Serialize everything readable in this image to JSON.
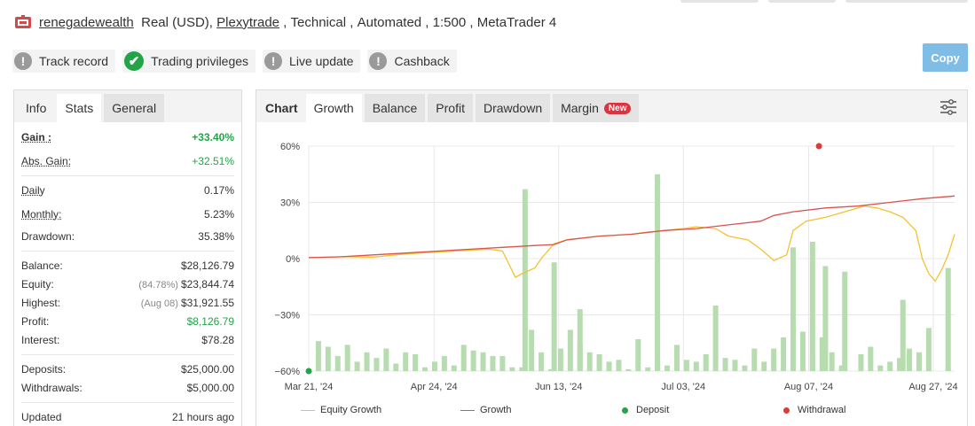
{
  "header": {
    "account": "renegadewealth",
    "type": "Real (USD)",
    "broker": "Plexytrade",
    "style": "Technical",
    "mode": "Automated",
    "leverage": "1:500",
    "platform": "MetaTrader 4",
    "flag_icon": "broker-flag-icon"
  },
  "badges": [
    {
      "label": "Track record",
      "icon": "exclamation-icon"
    },
    {
      "label": "Trading privileges",
      "icon": "check-icon"
    },
    {
      "label": "Live update",
      "icon": "exclamation-icon"
    },
    {
      "label": "Cashback",
      "icon": "exclamation-icon"
    }
  ],
  "copy_button": "Copy",
  "left_tabs": [
    "Info",
    "Stats",
    "General"
  ],
  "stats": {
    "gain_label": "Gain :",
    "gain": "+33.40%",
    "abs_gain_label": "Abs. Gain:",
    "abs_gain": "+32.51%",
    "daily_label": "Daily",
    "daily": "0.17%",
    "monthly_label": "Monthly:",
    "monthly": "5.23%",
    "drawdown_label": "Drawdown:",
    "drawdown": "35.38%",
    "balance_label": "Balance:",
    "balance": "$28,126.79",
    "equity_label": "Equity:",
    "equity_note": "(84.78%)",
    "equity": "$23,844.74",
    "highest_label": "Highest:",
    "highest_note": "(Aug 08)",
    "highest": "$31,921.55",
    "profit_label": "Profit:",
    "profit": "$8,126.79",
    "interest_label": "Interest:",
    "interest": "$78.28",
    "deposits_label": "Deposits:",
    "deposits": "$25,000.00",
    "withdrawals_label": "Withdrawals:",
    "withdrawals": "$5,000.00",
    "updated_label": "Updated",
    "updated": "21 hours ago"
  },
  "chart_tabs": [
    "Chart",
    "Growth",
    "Balance",
    "Profit",
    "Drawdown",
    "Margin"
  ],
  "new_badge": "New",
  "legend": {
    "equity": "Equity Growth",
    "growth": "Growth",
    "deposit": "Deposit",
    "withdrawal": "Withdrawal"
  },
  "colors": {
    "equity": "#f2c230",
    "growth": "#d9534f",
    "bar": "#b6dcb0",
    "deposit": "#22a447",
    "withdrawal": "#dc3b3b",
    "grid": "#e8e8e8"
  },
  "chart_data": {
    "type": "line",
    "ylim": [
      -60,
      60
    ],
    "yticks": [
      60,
      30,
      0,
      -30,
      -60
    ],
    "ytick_labels": [
      "60%",
      "30%",
      "0%",
      "−30%",
      "−60%"
    ],
    "x_labels": [
      "Mar 21, '24",
      "Apr 24, '24",
      "Jun 13, '24",
      "Jul 03, '24",
      "Aug 07, '24",
      "Aug 27, '24"
    ],
    "x_label_pos": [
      0,
      0.194,
      0.387,
      0.58,
      0.774,
      0.967
    ],
    "series": [
      {
        "name": "Growth",
        "type": "line",
        "points": [
          [
            0,
            0.5
          ],
          [
            0.05,
            1
          ],
          [
            0.1,
            2
          ],
          [
            0.15,
            3
          ],
          [
            0.2,
            4
          ],
          [
            0.25,
            5
          ],
          [
            0.3,
            6
          ],
          [
            0.35,
            7
          ],
          [
            0.38,
            7.5
          ],
          [
            0.4,
            10
          ],
          [
            0.45,
            12
          ],
          [
            0.5,
            13
          ],
          [
            0.55,
            15
          ],
          [
            0.6,
            16
          ],
          [
            0.65,
            18
          ],
          [
            0.7,
            20
          ],
          [
            0.72,
            23
          ],
          [
            0.75,
            25
          ],
          [
            0.8,
            27
          ],
          [
            0.85,
            28
          ],
          [
            0.9,
            30
          ],
          [
            0.95,
            32
          ],
          [
            1,
            33.4
          ]
        ]
      },
      {
        "name": "Equity Growth",
        "type": "line",
        "points": [
          [
            0,
            0.5
          ],
          [
            0.05,
            1
          ],
          [
            0.1,
            0.8
          ],
          [
            0.15,
            2.5
          ],
          [
            0.2,
            3.5
          ],
          [
            0.25,
            4.5
          ],
          [
            0.28,
            5
          ],
          [
            0.3,
            4
          ],
          [
            0.31,
            -3
          ],
          [
            0.32,
            -10
          ],
          [
            0.33,
            -8
          ],
          [
            0.35,
            -5
          ],
          [
            0.36,
            0
          ],
          [
            0.38,
            8
          ],
          [
            0.4,
            10
          ],
          [
            0.45,
            12
          ],
          [
            0.5,
            13
          ],
          [
            0.52,
            14
          ],
          [
            0.55,
            15
          ],
          [
            0.58,
            16
          ],
          [
            0.6,
            17
          ],
          [
            0.63,
            16
          ],
          [
            0.65,
            12
          ],
          [
            0.68,
            10
          ],
          [
            0.7,
            5
          ],
          [
            0.72,
            -1
          ],
          [
            0.74,
            2
          ],
          [
            0.75,
            15
          ],
          [
            0.77,
            20
          ],
          [
            0.8,
            22
          ],
          [
            0.83,
            25
          ],
          [
            0.86,
            28
          ],
          [
            0.88,
            27
          ],
          [
            0.9,
            25
          ],
          [
            0.92,
            22
          ],
          [
            0.94,
            15
          ],
          [
            0.95,
            0
          ],
          [
            0.96,
            -8
          ],
          [
            0.97,
            -12
          ],
          [
            0.98,
            -6
          ],
          [
            0.99,
            2
          ],
          [
            1,
            13
          ]
        ]
      },
      {
        "name": "Bars",
        "type": "bar",
        "points": [
          [
            0.015,
            -44
          ],
          [
            0.03,
            -47
          ],
          [
            0.045,
            -52
          ],
          [
            0.06,
            -46
          ],
          [
            0.075,
            -55
          ],
          [
            0.09,
            -50
          ],
          [
            0.105,
            -53
          ],
          [
            0.12,
            -48
          ],
          [
            0.135,
            -56
          ],
          [
            0.15,
            -50
          ],
          [
            0.165,
            -51
          ],
          [
            0.18,
            -58
          ],
          [
            0.195,
            -55
          ],
          [
            0.21,
            -52
          ],
          [
            0.225,
            -57
          ],
          [
            0.24,
            -46
          ],
          [
            0.255,
            -49
          ],
          [
            0.27,
            -50
          ],
          [
            0.285,
            -52
          ],
          [
            0.3,
            -52
          ],
          [
            0.315,
            -58
          ],
          [
            0.33,
            -58
          ],
          [
            0.345,
            -38
          ],
          [
            0.36,
            -50
          ],
          [
            0.375,
            -59
          ],
          [
            0.39,
            -48
          ],
          [
            0.405,
            -38
          ],
          [
            0.42,
            -45
          ],
          [
            0.435,
            -50
          ],
          [
            0.45,
            -51
          ],
          [
            0.465,
            -55
          ],
          [
            0.48,
            -54
          ],
          [
            0.495,
            -59
          ],
          [
            0.51,
            -43
          ],
          [
            0.525,
            -58
          ],
          [
            0.54,
            -56
          ],
          [
            0.555,
            -57
          ],
          [
            0.57,
            -46
          ],
          [
            0.585,
            -54
          ],
          [
            0.6,
            -55
          ],
          [
            0.615,
            -51
          ],
          [
            0.63,
            -59
          ],
          [
            0.645,
            -53
          ],
          [
            0.66,
            -54
          ],
          [
            0.675,
            -57
          ],
          [
            0.69,
            -48
          ],
          [
            0.705,
            -55
          ],
          [
            0.72,
            -48
          ],
          [
            0.735,
            -42
          ],
          [
            0.75,
            -46
          ],
          [
            0.765,
            -39
          ],
          [
            0.78,
            -51
          ],
          [
            0.795,
            -42
          ],
          [
            0.81,
            -50
          ],
          [
            0.825,
            -57
          ],
          [
            0.84,
            -60
          ],
          [
            0.855,
            -51
          ],
          [
            0.87,
            -47
          ],
          [
            0.885,
            -57
          ],
          [
            0.9,
            -55
          ],
          [
            0.915,
            -53
          ],
          [
            0.93,
            -48
          ],
          [
            0.945,
            -50
          ],
          [
            0.96,
            -59
          ],
          [
            0.975,
            -60
          ],
          [
            0.99,
            -58
          ]
        ]
      }
    ],
    "bars_tall": [
      [
        0.335,
        -60,
        37
      ],
      [
        0.38,
        -60,
        -2
      ],
      [
        0.42,
        -60,
        -27
      ],
      [
        0.54,
        -60,
        45
      ],
      [
        0.63,
        -60,
        -25
      ],
      [
        0.75,
        -60,
        6
      ],
      [
        0.78,
        -60,
        9
      ],
      [
        0.8,
        -60,
        -4
      ],
      [
        0.83,
        -60,
        -7
      ],
      [
        0.92,
        -60,
        -22
      ],
      [
        0.96,
        -60,
        -37
      ],
      [
        0.99,
        -60,
        -5
      ]
    ],
    "deposit": [
      0,
      -60
    ],
    "withdrawal": [
      0.79,
      60
    ]
  }
}
